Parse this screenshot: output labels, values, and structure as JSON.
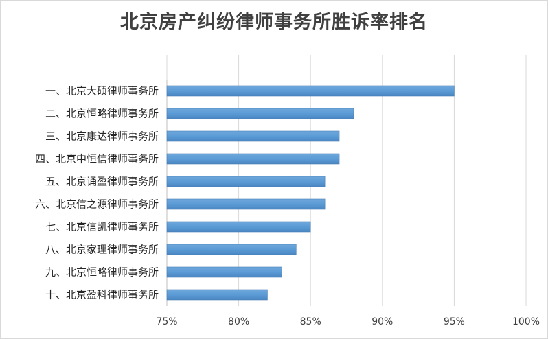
{
  "chart_data": {
    "type": "bar",
    "orientation": "horizontal",
    "title": "北京房产纠纷律师事务所胜诉率排名",
    "categories": [
      "一、北京大硕律师事务所",
      "二、北京恒略律师事务所",
      "三、北京康达律师事务所",
      "四、北京中恒信律师事务所",
      "五、北京诵盈律师事务所",
      "六、北京信之源律师事务所",
      "七、北京信凯律师事务所",
      "八、北京家理律师事务所",
      "九、北京恒略律师事务所",
      "十、北京盈科律师事务所"
    ],
    "values": [
      95,
      88,
      87,
      87,
      86,
      86,
      85,
      84,
      83,
      82
    ],
    "xlim": [
      75,
      100
    ],
    "xticks": [
      75,
      80,
      85,
      90,
      95,
      100
    ],
    "xtick_labels": [
      "75%",
      "80%",
      "85%",
      "90%",
      "95%",
      "100%"
    ],
    "xlabel": "",
    "ylabel": "",
    "grid": "vertical",
    "legend": "none",
    "bar_color": "#5b9bd5"
  }
}
